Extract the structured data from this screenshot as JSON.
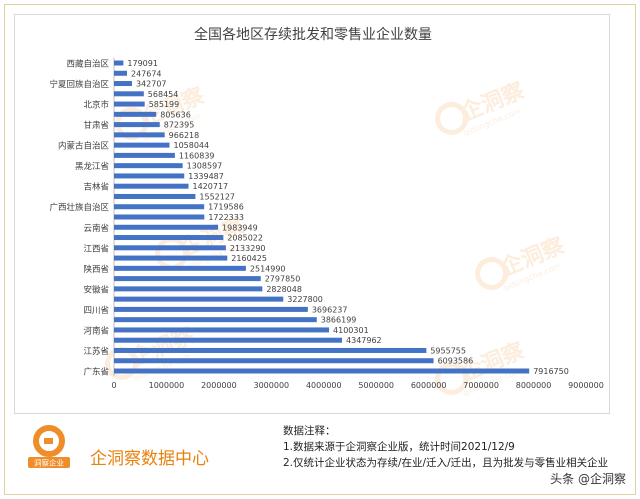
{
  "chart_data": {
    "type": "bar",
    "orientation": "horizontal",
    "title": "全国各地区存续批发和零售业企业数量",
    "xlabel": "",
    "ylabel": "",
    "xlim": [
      0,
      9000000
    ],
    "x_ticks": [
      "0",
      "1000000",
      "2000000",
      "3000000",
      "4000000",
      "5000000",
      "6000000",
      "7000000",
      "8000000",
      "9000000"
    ],
    "categories": [
      "西藏自治区",
      "",
      "宁夏回族自治区",
      "",
      "北京市",
      "",
      "甘肃省",
      "",
      "内蒙古自治区",
      "",
      "黑龙江省",
      "",
      "吉林省",
      "",
      "广西壮族自治区",
      "",
      "云南省",
      "",
      "江西省",
      "",
      "陕西省",
      "",
      "安徽省",
      "",
      "四川省",
      "",
      "河南省",
      "",
      "江苏省",
      "",
      "广东省"
    ],
    "values": [
      179091,
      247674,
      342707,
      568454,
      585199,
      805636,
      872395,
      966218,
      1058044,
      1160839,
      1308597,
      1339487,
      1420717,
      1552127,
      1719586,
      1722333,
      1983949,
      2085022,
      2133290,
      2160425,
      2514990,
      2797850,
      2828048,
      3227800,
      3696237,
      3866199,
      4100301,
      4347962,
      5955755,
      6093586,
      7916750
    ],
    "bar_color": "#4472c4",
    "grid": false,
    "legend": "none"
  },
  "watermark": {
    "brand": "企洞察",
    "url_text": "qidongcha.com",
    "color": "#f3b06a"
  },
  "footer": {
    "logo_caption": "洞察企业",
    "brand_title": "企洞察数据中心",
    "notes_heading": "数据注释：",
    "note1": "1.数据来源于企洞察企业版，统计时间2021/12/9",
    "note2": "2.仅统计企业状态为存续/在业/迁入/迁出，且为批发与零售业相关企业",
    "attribution": "头条 @企洞察"
  }
}
